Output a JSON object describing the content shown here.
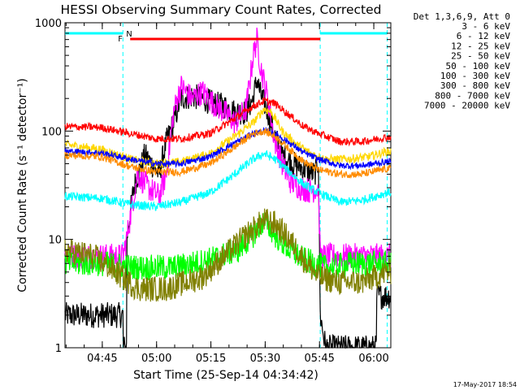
{
  "chart_data": {
    "type": "line",
    "title": "HESSI Observing Summary Count Rates, Corrected",
    "xlabel": "Start Time (25-Sep-14 04:34:42)",
    "ylabel": "Corrected Count Rate (s⁻¹ detector⁻¹)",
    "yscale": "log",
    "ylim": [
      1,
      1000
    ],
    "xlim": [
      0,
      90
    ],
    "x_unit": "minutes after 04:34:42",
    "x_ticks": [
      {
        "t": 10.3,
        "label": "04:45"
      },
      {
        "t": 25.3,
        "label": "05:00"
      },
      {
        "t": 40.3,
        "label": "05:15"
      },
      {
        "t": 55.3,
        "label": "05:30"
      },
      {
        "t": 70.3,
        "label": "05:45"
      },
      {
        "t": 85.3,
        "label": "06:00"
      }
    ],
    "y_ticks": [
      {
        "v": 1,
        "label": "1"
      },
      {
        "v": 10,
        "label": "10"
      },
      {
        "v": 100,
        "label": "100"
      },
      {
        "v": 1000,
        "label": "1000"
      }
    ],
    "legend": {
      "header": "Det 1,3,6,9, Att 0",
      "position": "right"
    },
    "series": [
      {
        "name": "3 - 6 keV",
        "color": "#000000",
        "points": [
          [
            0,
            2
          ],
          [
            16,
            2
          ],
          [
            16,
            1
          ],
          [
            17,
            1
          ],
          [
            17,
            10
          ],
          [
            19,
            30
          ],
          [
            22,
            60
          ],
          [
            26,
            40
          ],
          [
            28,
            80
          ],
          [
            30,
            120
          ],
          [
            32,
            200
          ],
          [
            35,
            210
          ],
          [
            38,
            200
          ],
          [
            41,
            180
          ],
          [
            44,
            170
          ],
          [
            47,
            150
          ],
          [
            50,
            150
          ],
          [
            52,
            200
          ],
          [
            53,
            300
          ],
          [
            54,
            220
          ],
          [
            56,
            150
          ],
          [
            58,
            90
          ],
          [
            60,
            60
          ],
          [
            63,
            50
          ],
          [
            66,
            45
          ],
          [
            69,
            40
          ],
          [
            70,
            55
          ],
          [
            70.5,
            2
          ],
          [
            72,
            1
          ],
          [
            86,
            1
          ],
          [
            86,
            3
          ],
          [
            89,
            3
          ]
        ]
      },
      {
        "name": "6 - 12 keV",
        "color": "#ff00ff",
        "points": [
          [
            0,
            7
          ],
          [
            16,
            7
          ],
          [
            17,
            10
          ],
          [
            20,
            40
          ],
          [
            23,
            30
          ],
          [
            26,
            25
          ],
          [
            28,
            40
          ],
          [
            30,
            150
          ],
          [
            32,
            260
          ],
          [
            35,
            200
          ],
          [
            38,
            230
          ],
          [
            41,
            180
          ],
          [
            44,
            150
          ],
          [
            47,
            120
          ],
          [
            50,
            160
          ],
          [
            52,
            500
          ],
          [
            53,
            700
          ],
          [
            54,
            400
          ],
          [
            56,
            200
          ],
          [
            58,
            80
          ],
          [
            60,
            50
          ],
          [
            62,
            35
          ],
          [
            65,
            30
          ],
          [
            68,
            28
          ],
          [
            70,
            30
          ],
          [
            70.5,
            7
          ],
          [
            89,
            7
          ]
        ]
      },
      {
        "name": "12 - 25 keV",
        "color": "#ffd700",
        "points": [
          [
            0,
            75
          ],
          [
            10,
            68
          ],
          [
            18,
            55
          ],
          [
            25,
            50
          ],
          [
            32,
            52
          ],
          [
            40,
            62
          ],
          [
            46,
            85
          ],
          [
            52,
            120
          ],
          [
            55,
            160
          ],
          [
            57,
            150
          ],
          [
            60,
            100
          ],
          [
            64,
            75
          ],
          [
            68,
            62
          ],
          [
            72,
            55
          ],
          [
            78,
            55
          ],
          [
            84,
            58
          ],
          [
            89,
            65
          ]
        ]
      },
      {
        "name": "25 - 50 keV",
        "color": "#00ffff",
        "points": [
          [
            0,
            25
          ],
          [
            10,
            24
          ],
          [
            18,
            21
          ],
          [
            25,
            20
          ],
          [
            32,
            22
          ],
          [
            40,
            27
          ],
          [
            46,
            38
          ],
          [
            52,
            55
          ],
          [
            55,
            62
          ],
          [
            58,
            55
          ],
          [
            62,
            42
          ],
          [
            66,
            32
          ],
          [
            70,
            27
          ],
          [
            76,
            22
          ],
          [
            82,
            23
          ],
          [
            89,
            27
          ]
        ]
      },
      {
        "name": "50 - 100 keV",
        "color": "#00ff00",
        "points": [
          [
            0,
            6
          ],
          [
            10,
            6
          ],
          [
            20,
            5.5
          ],
          [
            30,
            5.5
          ],
          [
            40,
            6.5
          ],
          [
            48,
            8
          ],
          [
            52,
            11
          ],
          [
            55,
            15
          ],
          [
            58,
            11
          ],
          [
            62,
            8
          ],
          [
            66,
            6.5
          ],
          [
            72,
            5.5
          ],
          [
            80,
            6
          ],
          [
            89,
            6
          ]
        ]
      },
      {
        "name": "100 - 300 keV",
        "color": "#ff0000",
        "points": [
          [
            0,
            110
          ],
          [
            10,
            108
          ],
          [
            18,
            95
          ],
          [
            25,
            85
          ],
          [
            32,
            85
          ],
          [
            40,
            95
          ],
          [
            46,
            125
          ],
          [
            52,
            170
          ],
          [
            55,
            190
          ],
          [
            58,
            180
          ],
          [
            62,
            140
          ],
          [
            66,
            110
          ],
          [
            70,
            95
          ],
          [
            76,
            80
          ],
          [
            82,
            80
          ],
          [
            89,
            88
          ]
        ]
      },
      {
        "name": "300 - 800 keV",
        "color": "#0000ff",
        "points": [
          [
            0,
            65
          ],
          [
            10,
            63
          ],
          [
            18,
            55
          ],
          [
            25,
            50
          ],
          [
            32,
            50
          ],
          [
            40,
            58
          ],
          [
            46,
            75
          ],
          [
            52,
            95
          ],
          [
            55,
            100
          ],
          [
            58,
            95
          ],
          [
            62,
            78
          ],
          [
            66,
            63
          ],
          [
            70,
            55
          ],
          [
            76,
            48
          ],
          [
            82,
            48
          ],
          [
            89,
            52
          ]
        ]
      },
      {
        "name": "800 - 7000 keV",
        "color": "#ff8c00",
        "points": [
          [
            0,
            60
          ],
          [
            10,
            58
          ],
          [
            18,
            47
          ],
          [
            25,
            42
          ],
          [
            32,
            42
          ],
          [
            40,
            50
          ],
          [
            46,
            68
          ],
          [
            52,
            95
          ],
          [
            55,
            100
          ],
          [
            58,
            90
          ],
          [
            62,
            68
          ],
          [
            66,
            52
          ],
          [
            70,
            44
          ],
          [
            76,
            40
          ],
          [
            82,
            40
          ],
          [
            89,
            45
          ]
        ]
      },
      {
        "name": "7000 - 20000 keV",
        "color": "#808000",
        "points": [
          [
            0,
            8
          ],
          [
            8,
            7
          ],
          [
            14,
            5
          ],
          [
            20,
            3.5
          ],
          [
            28,
            3.5
          ],
          [
            38,
            4.5
          ],
          [
            44,
            7
          ],
          [
            50,
            11
          ],
          [
            55,
            15
          ],
          [
            58,
            14
          ],
          [
            62,
            10
          ],
          [
            66,
            6.5
          ],
          [
            70,
            4.5
          ],
          [
            76,
            4
          ],
          [
            82,
            4
          ],
          [
            89,
            5
          ]
        ]
      }
    ],
    "flags": [
      {
        "label": "N",
        "color": "#00ffff"
      },
      {
        "label": "F",
        "color": "#ff0000"
      }
    ],
    "flag_bars": [
      {
        "color": "#00ffff",
        "x_range": [
          0,
          16
        ]
      },
      {
        "color": "#00ffff",
        "x_range": [
          70.5,
          89
        ]
      },
      {
        "color": "#ff0000",
        "x_range": [
          18,
          70.5
        ]
      }
    ],
    "vlines": [
      {
        "t": 16,
        "color": "#00ffff"
      },
      {
        "t": 70.5,
        "color": "#00ffff"
      },
      {
        "t": 89,
        "color": "#00ffff"
      }
    ]
  },
  "timestamp": "17-May-2017 18:54"
}
